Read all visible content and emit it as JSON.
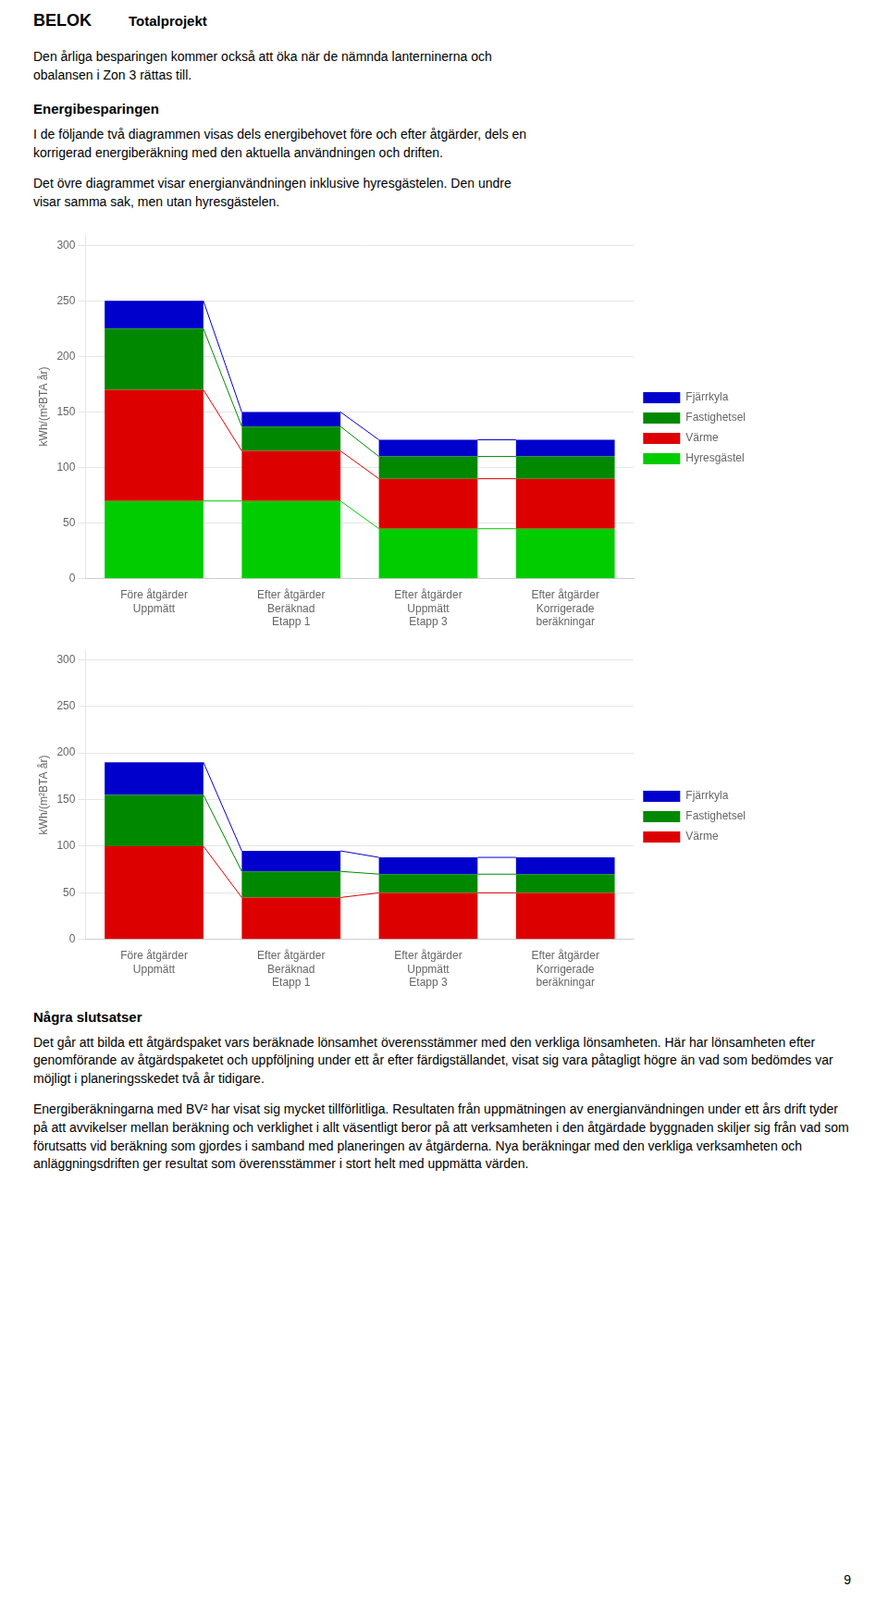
{
  "texts": {
    "logo": "BELOK",
    "header": "Totalprojekt",
    "para1": "Den årliga besparingen kommer också att öka när de nämnda lanterninerna och\nobalansen i Zon 3 rättas till.",
    "heading1": "Energibesparingen",
    "para2": "I de följande två diagrammen visas dels energibehovet före och efter åtgärder, dels en\nkorrigerad energiberäkning med den aktuella användningen och driften.",
    "para3": "Det övre diagrammet visar energianvändningen inklusive hyresgästelen. Den undre\nvisar samma sak, men utan hyresgästelen.",
    "heading2": "Några slutsatser",
    "para4": "Det går att bilda ett åtgärdspaket vars beräknade lönsamhet överensstämmer med den verkliga lönsamheten. Här har lönsamheten efter genomförande av åtgärdspaketet och uppföljning under ett år efter färdigställandet, visat sig vara påtagligt högre än vad som bedömdes var möjligt i planeringsskedet två år tidigare.",
    "para5": "Energiberäkningarna med BV² har visat sig mycket tillförlitliga. Resultaten från uppmätningen av energianvändningen under ett års drift tyder på att avvikelser mellan beräkning och verklighet i allt väsentligt beror på att verksamheten i den åtgärdade byggnaden skiljer sig från vad som förutsatts vid beräkning som gjordes i samband med planeringen av åtgärderna. Nya beräkningar med den verkliga verksamheten och anläggningsdriften ger resultat som överensstämmer i stort helt med uppmätta värden.",
    "page_number": "9"
  },
  "chart_data": [
    {
      "type": "bar",
      "stacked": true,
      "grid": true,
      "legend": "right",
      "y_label": "kWh/(m²BTA år)",
      "categories": [
        "Före åtgärder\nUppmätt",
        "Efter åtgärder\nBeräknad\nEtapp 1",
        "Efter åtgärder\nUppmätt\nEtapp 3",
        "Efter åtgärder\nKorrigerade\nberäkningar"
      ],
      "series": [
        {
          "name": "Hyresgästel",
          "color": "#00cc00",
          "values": [
            70,
            70,
            45,
            45
          ]
        },
        {
          "name": "Värme",
          "color": "#dd0000",
          "values": [
            100,
            45,
            45,
            45
          ]
        },
        {
          "name": "Fastighetsel",
          "color": "#008800",
          "values": [
            55,
            22,
            20,
            20
          ]
        },
        {
          "name": "Fjärrkyla",
          "color": "#0000cc",
          "values": [
            25,
            13,
            15,
            15
          ]
        }
      ],
      "ylim": [
        0,
        310
      ],
      "yticks": [
        0,
        50,
        100,
        150,
        200,
        250,
        300
      ]
    },
    {
      "type": "bar",
      "stacked": true,
      "grid": true,
      "legend": "right",
      "y_label": "kWh/(m²BTA år)",
      "categories": [
        "Före åtgärder\nUppmätt",
        "Efter åtgärder\nBeräknad\nEtapp 1",
        "Efter åtgärder\nUppmätt\nEtapp 3",
        "Efter åtgärder\nKorrigerade\nberäkningar"
      ],
      "series": [
        {
          "name": "Värme",
          "color": "#dd0000",
          "values": [
            100,
            45,
            50,
            50
          ]
        },
        {
          "name": "Fastighetsel",
          "color": "#008800",
          "values": [
            55,
            28,
            20,
            20
          ]
        },
        {
          "name": "Fjärrkyla",
          "color": "#0000cc",
          "values": [
            35,
            22,
            18,
            18
          ]
        }
      ],
      "ylim": [
        0,
        310
      ],
      "yticks": [
        0,
        50,
        100,
        150,
        200,
        250,
        300
      ]
    }
  ]
}
